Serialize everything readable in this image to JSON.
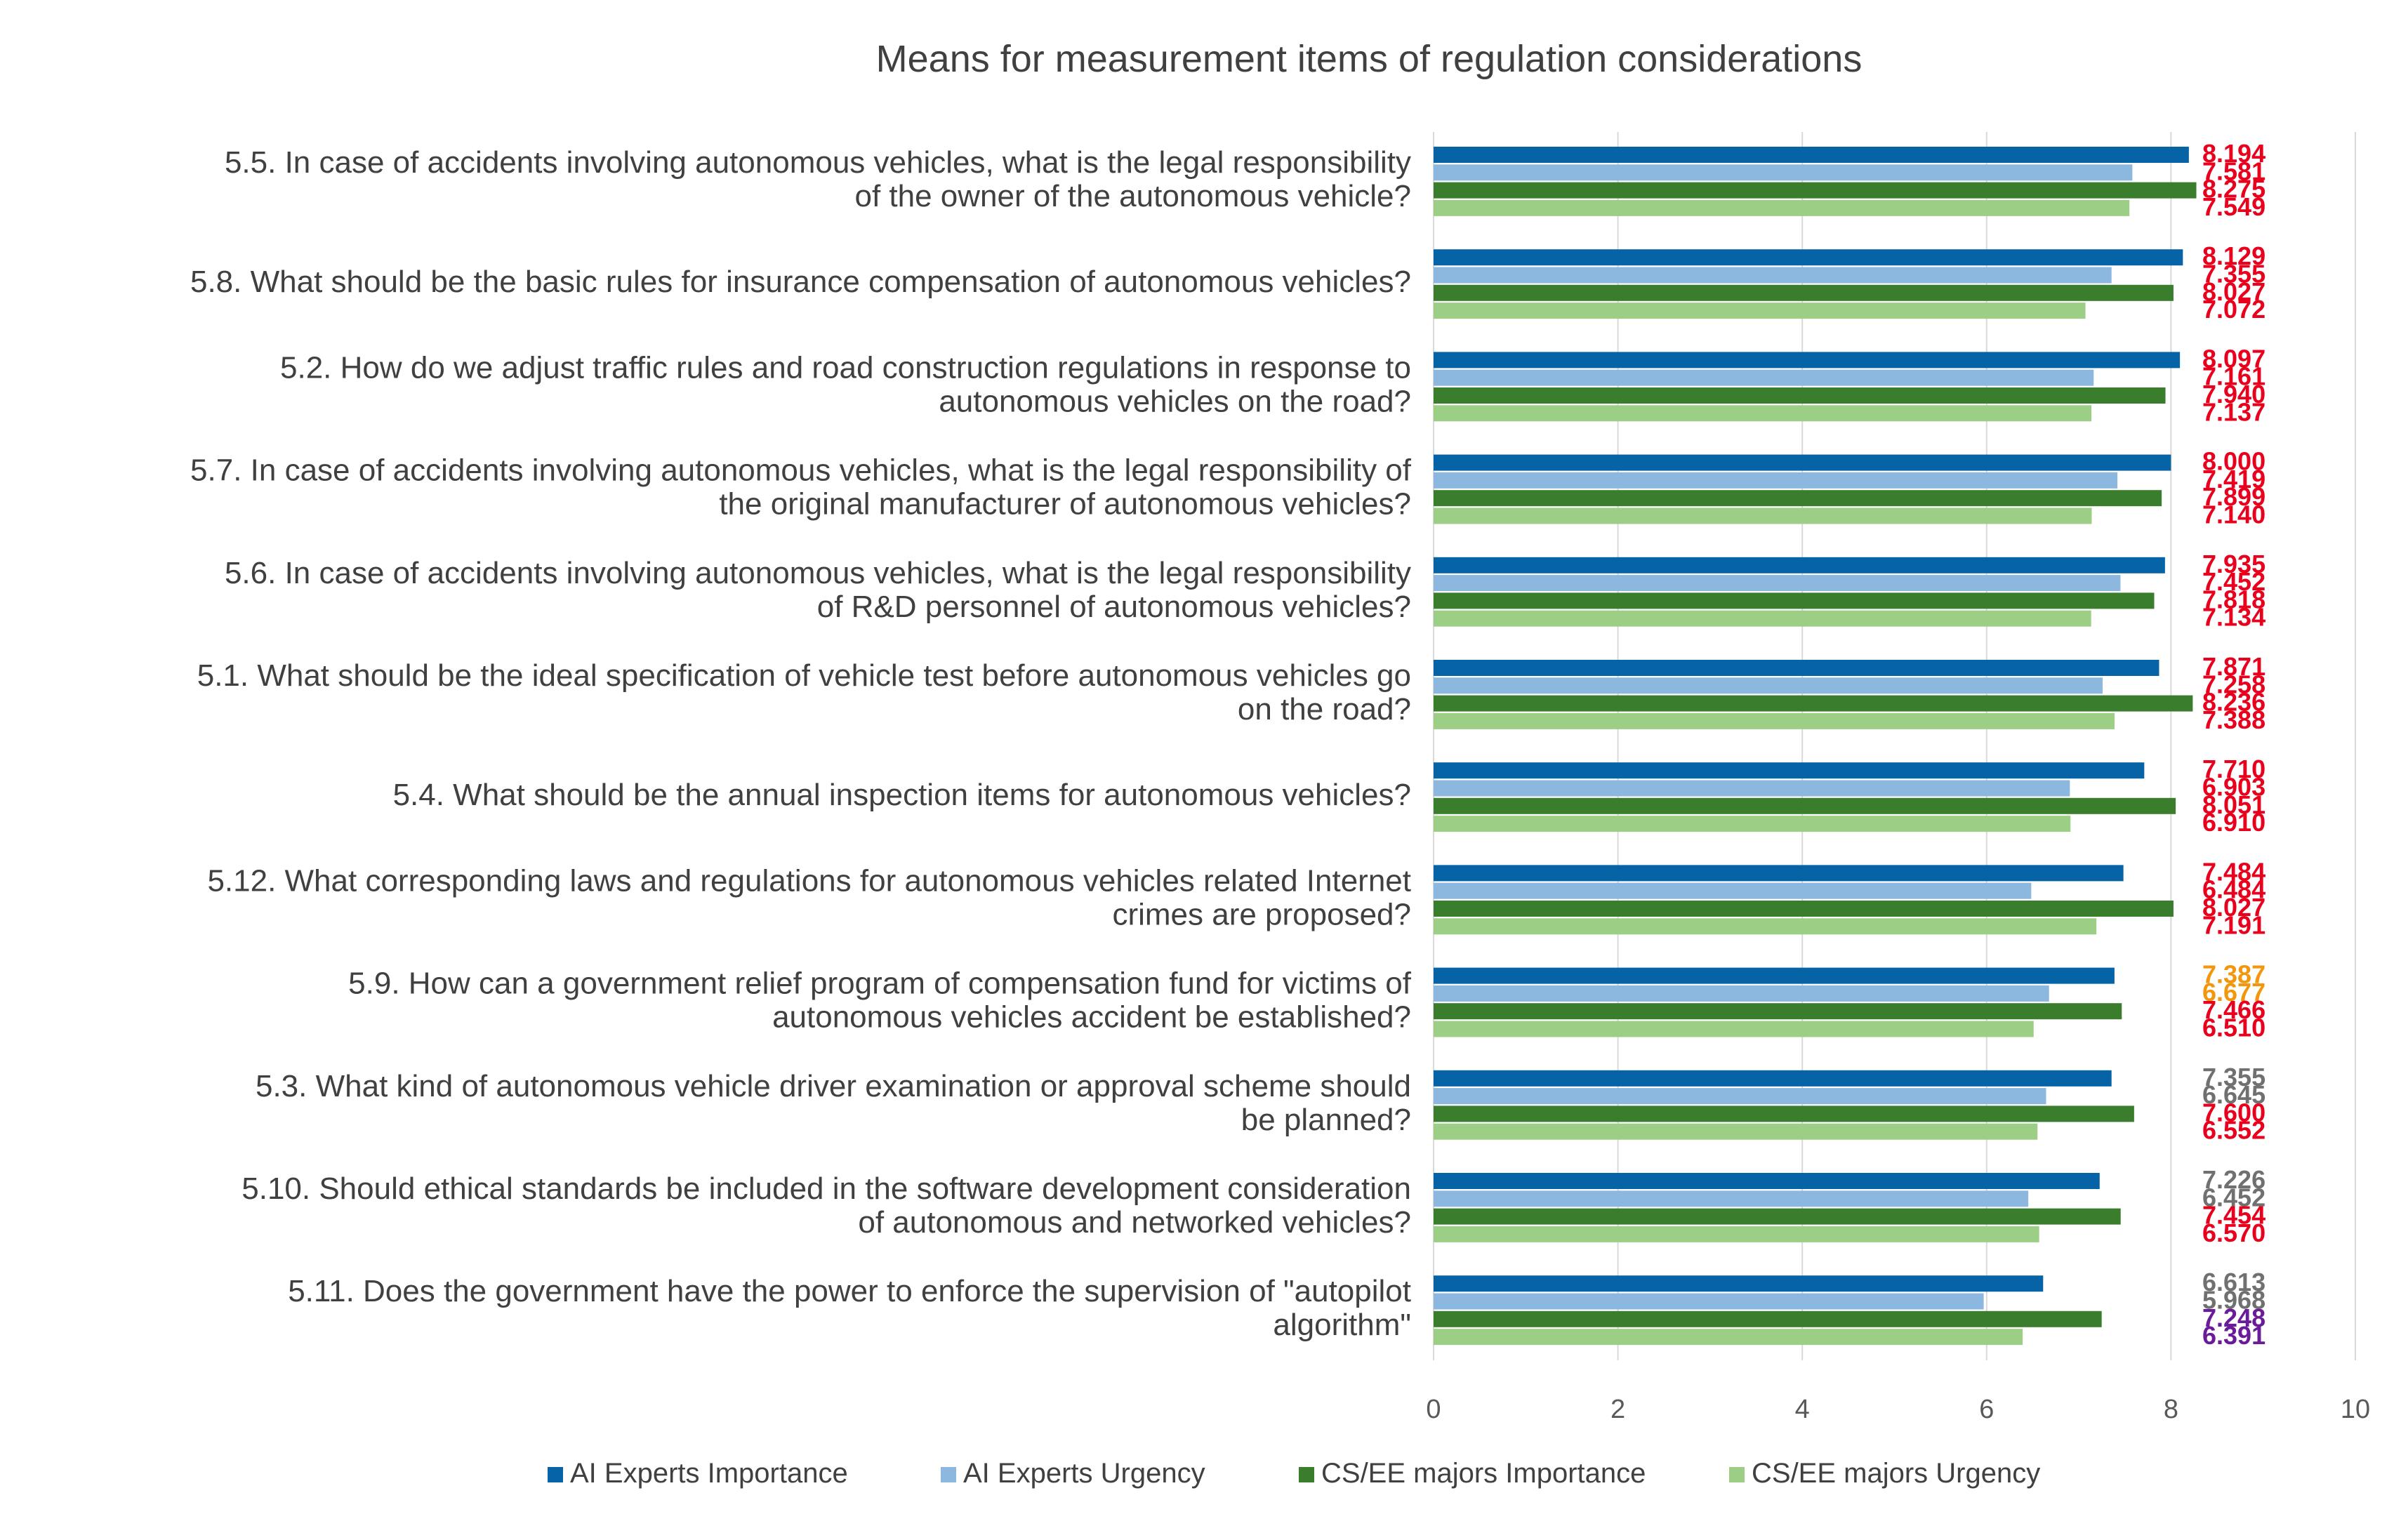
{
  "chart_data": {
    "type": "bar",
    "orientation": "horizontal",
    "title": "Means for measurement items of regulation considerations",
    "xlim": [
      0,
      10
    ],
    "xticks": [
      0,
      2,
      4,
      6,
      8,
      10
    ],
    "grid": "vertical",
    "legend_position": "bottom",
    "categories": [
      [
        "5.5. In case of accidents involving autonomous vehicles, what is the legal responsibility",
        "of the owner of the autonomous vehicle?"
      ],
      [
        "5.8. What should be the basic rules for insurance compensation of autonomous vehicles?"
      ],
      [
        "5.2. How do we adjust traffic rules and road construction regulations in response to",
        "autonomous vehicles on the road?"
      ],
      [
        "5.7. In case of accidents involving autonomous vehicles, what is the legal responsibility of",
        "the original manufacturer of autonomous vehicles?"
      ],
      [
        "5.6. In case of accidents involving autonomous vehicles, what is the legal responsibility",
        "of R&D personnel of autonomous vehicles?"
      ],
      [
        "5.1. What should be the ideal specification of vehicle test before autonomous vehicles go",
        "on the road?"
      ],
      [
        "5.4. What should be the annual inspection items for autonomous vehicles?"
      ],
      [
        "5.12. What corresponding laws and regulations for autonomous vehicles related Internet",
        "crimes are proposed?"
      ],
      [
        "5.9. How can a government relief program of compensation fund for victims of",
        "autonomous vehicles accident be established?"
      ],
      [
        "5.3. What kind of autonomous vehicle driver examination or approval scheme should",
        "be planned?"
      ],
      [
        "5.10. Should ethical standards be included in the software development consideration",
        "of autonomous and networked vehicles?"
      ],
      [
        "5.11. Does the government have the power to enforce the supervision of \"autopilot",
        "algorithm\""
      ]
    ],
    "series": [
      {
        "name": "AI Experts Importance",
        "color": "#0563a6",
        "values": [
          8.194,
          8.129,
          8.097,
          8.0,
          7.935,
          7.871,
          7.71,
          7.484,
          7.387,
          7.355,
          7.226,
          6.613
        ],
        "labels": [
          "8.194",
          "8.129",
          "8.097",
          "8.000",
          "7.935",
          "7.871",
          "7.710",
          "7.484",
          "7.387",
          "7.355",
          "7.226",
          "6.613"
        ]
      },
      {
        "name": "AI Experts  Urgency",
        "color": "#8cb8e0",
        "values": [
          7.581,
          7.355,
          7.161,
          7.419,
          7.452,
          7.258,
          6.903,
          6.484,
          6.677,
          6.645,
          6.452,
          5.968
        ],
        "labels": [
          "7.581",
          "7.355",
          "7.161",
          "7.419",
          "7.452",
          "7.258",
          "6.903",
          "6.484",
          "6.677",
          "6.645",
          "6.452",
          "5.968"
        ]
      },
      {
        "name": "CS/EE majors Importance",
        "color": "#3a7d2c",
        "values": [
          8.275,
          8.027,
          7.94,
          7.899,
          7.818,
          8.236,
          8.051,
          8.027,
          7.466,
          7.6,
          7.454,
          7.248
        ],
        "labels": [
          "8.275",
          "8.027",
          "7.940",
          "7.899",
          "7.818",
          "8.236",
          "8.051",
          "8.027",
          "7.466",
          "7.600",
          "7.454",
          "7.248"
        ]
      },
      {
        "name": "CS/EE majors Urgency",
        "color": "#9ccf85",
        "values": [
          7.549,
          7.072,
          7.137,
          7.14,
          7.134,
          7.388,
          6.91,
          7.191,
          6.51,
          6.552,
          6.57,
          6.391
        ],
        "labels": [
          "7.549",
          "7.072",
          "7.137",
          "7.140",
          "7.134",
          "7.388",
          "6.910",
          "7.191",
          "6.510",
          "6.552",
          "6.570",
          "6.391"
        ]
      }
    ],
    "value_label_colors": [
      [
        "#e8001c",
        "#e8001c",
        "#e8001c",
        "#e8001c"
      ],
      [
        "#e8001c",
        "#e8001c",
        "#e8001c",
        "#e8001c"
      ],
      [
        "#e8001c",
        "#e8001c",
        "#e8001c",
        "#e8001c"
      ],
      [
        "#e8001c",
        "#e8001c",
        "#e8001c",
        "#e8001c"
      ],
      [
        "#e8001c",
        "#e8001c",
        "#e8001c",
        "#e8001c"
      ],
      [
        "#e8001c",
        "#e8001c",
        "#e8001c",
        "#e8001c"
      ],
      [
        "#e8001c",
        "#e8001c",
        "#e8001c",
        "#e8001c"
      ],
      [
        "#e8001c",
        "#e8001c",
        "#e8001c",
        "#e8001c"
      ],
      [
        "#f2960e",
        "#f2960e",
        "#e8001c",
        "#e8001c"
      ],
      [
        "#707070",
        "#707070",
        "#e8001c",
        "#e8001c"
      ],
      [
        "#707070",
        "#707070",
        "#e8001c",
        "#e8001c"
      ],
      [
        "#707070",
        "#707070",
        "#6a1b9a",
        "#6a1b9a"
      ]
    ]
  }
}
